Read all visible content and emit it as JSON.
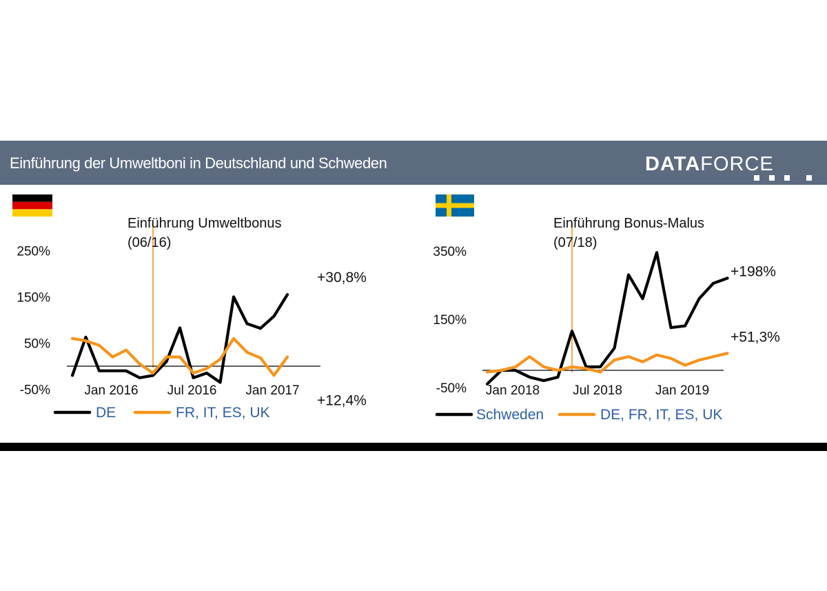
{
  "header": {
    "title": "Einführung der Umweltboni in Deutschland und Schweden",
    "logo_bold": "DATA",
    "logo_light": "FORCE"
  },
  "colors": {
    "header_bg": "#5c6b80",
    "series_primary": "#000000",
    "series_secondary": "#f7941d",
    "event_line": "#f7941d",
    "legend_text": "#2e5fa8",
    "de_black": "#000000",
    "de_red": "#dd0000",
    "de_gold": "#ffcc00",
    "se_blue": "#006aa7",
    "se_yellow": "#fecc00"
  },
  "chart_data": [
    {
      "type": "line",
      "flag": "germany-flag",
      "annotation": {
        "line1": "Einführung Umweltbonus",
        "line2": "(06/16)",
        "x_index": 6
      },
      "ylim": [
        -50,
        250
      ],
      "y_ticks": [
        {
          "label": "250%",
          "value": 250
        },
        {
          "label": "150%",
          "value": 150
        },
        {
          "label": "50%",
          "value": 50
        },
        {
          "label": "-50%",
          "value": -50
        }
      ],
      "x_ticks": [
        {
          "label": "Jan 2016",
          "index": 1
        },
        {
          "label": "Jul 2016",
          "index": 7
        },
        {
          "label": "Jan 2017",
          "index": 13
        }
      ],
      "series": [
        {
          "name": "DE",
          "color": "#000000",
          "end_label": "+30,8%",
          "values": [
            -20,
            63,
            -10,
            -10,
            -10,
            -25,
            -20,
            10,
            83,
            -25,
            -15,
            -35,
            150,
            92,
            82,
            108,
            155
          ]
        },
        {
          "name": "FR, IT, ES, UK",
          "color": "#f7941d",
          "end_label": "+12,4%",
          "values": [
            60,
            55,
            45,
            20,
            35,
            5,
            -15,
            20,
            20,
            -15,
            -5,
            15,
            60,
            30,
            18,
            -20,
            20
          ]
        }
      ]
    },
    {
      "type": "line",
      "flag": "sweden-flag",
      "annotation": {
        "line1": "Einführung Bonus-Malus",
        "line2": "(07/18)",
        "x_index": 6
      },
      "ylim": [
        -50,
        350
      ],
      "y_ticks": [
        {
          "label": "350%",
          "value": 350
        },
        {
          "label": "150%",
          "value": 150
        },
        {
          "label": "-50%",
          "value": -50
        }
      ],
      "x_ticks": [
        {
          "label": "Jan 2018",
          "index": 0
        },
        {
          "label": "Jul 2018",
          "index": 6
        },
        {
          "label": "Jan 2019",
          "index": 12
        }
      ],
      "series": [
        {
          "name": "Schweden",
          "color": "#000000",
          "end_label": "+198%",
          "values": [
            -40,
            0,
            0,
            -20,
            -30,
            -20,
            115,
            10,
            10,
            65,
            280,
            210,
            345,
            125,
            130,
            210,
            255,
            270
          ]
        },
        {
          "name": "DE, FR, IT, ES, UK",
          "color": "#f7941d",
          "end_label": "+51,3%",
          "values": [
            -5,
            0,
            10,
            40,
            10,
            0,
            10,
            5,
            -5,
            30,
            40,
            25,
            45,
            35,
            15,
            30,
            40,
            50
          ]
        }
      ]
    }
  ]
}
